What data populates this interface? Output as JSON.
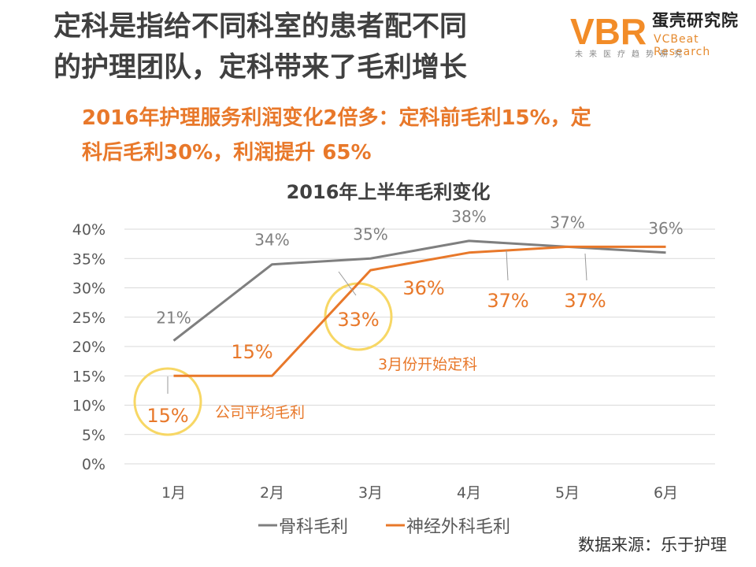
{
  "page": {
    "title_line1": "定科是指给不同科室的患者配不同",
    "title_line2": "的护理团队，定科带来了毛利增长",
    "subtitle_line1": "2016年护理服务利润变化2倍多：定科前毛利15%，定",
    "subtitle_line2": "科后毛利30%，利润提升 65%",
    "source": "数据来源：乐于护理"
  },
  "logo": {
    "mark_text": "VBR",
    "name_cn": "蛋壳研究院",
    "name_en": "VCBeat Research",
    "tagline": "未来医疗趋势研究",
    "accent": "#f28c28"
  },
  "colors": {
    "series_gray": "#7f7f7f",
    "series_orange": "#e8782a",
    "highlight_circle": "#f7d765",
    "gridline": "#d9d9d9",
    "axis_text": "#595959"
  },
  "chart_data": {
    "type": "line",
    "title": "2016年上半年毛利变化",
    "categories": [
      "1月",
      "2月",
      "3月",
      "4月",
      "5月",
      "6月"
    ],
    "ylim": [
      0,
      40
    ],
    "yticks": [
      "0%",
      "5%",
      "10%",
      "15%",
      "20%",
      "25%",
      "30%",
      "35%",
      "40%"
    ],
    "grid": true,
    "legend_position": "bottom",
    "series": [
      {
        "name": "骨科毛利",
        "values": [
          21,
          34,
          35,
          38,
          37,
          36
        ],
        "labels": [
          "21%",
          "34%",
          "35%",
          "38%",
          "37%",
          "36%"
        ]
      },
      {
        "name": "神经外科毛利",
        "values": [
          15,
          15,
          33,
          36,
          37,
          37
        ],
        "labels": [
          "15%",
          "15%",
          "33%",
          "36%",
          "37%",
          "37%"
        ]
      }
    ],
    "annotations": [
      {
        "text": "公司平均毛利",
        "category": "1月",
        "value": 15
      },
      {
        "text": "3月份开始定科",
        "category": "3月",
        "value": 33
      }
    ]
  }
}
